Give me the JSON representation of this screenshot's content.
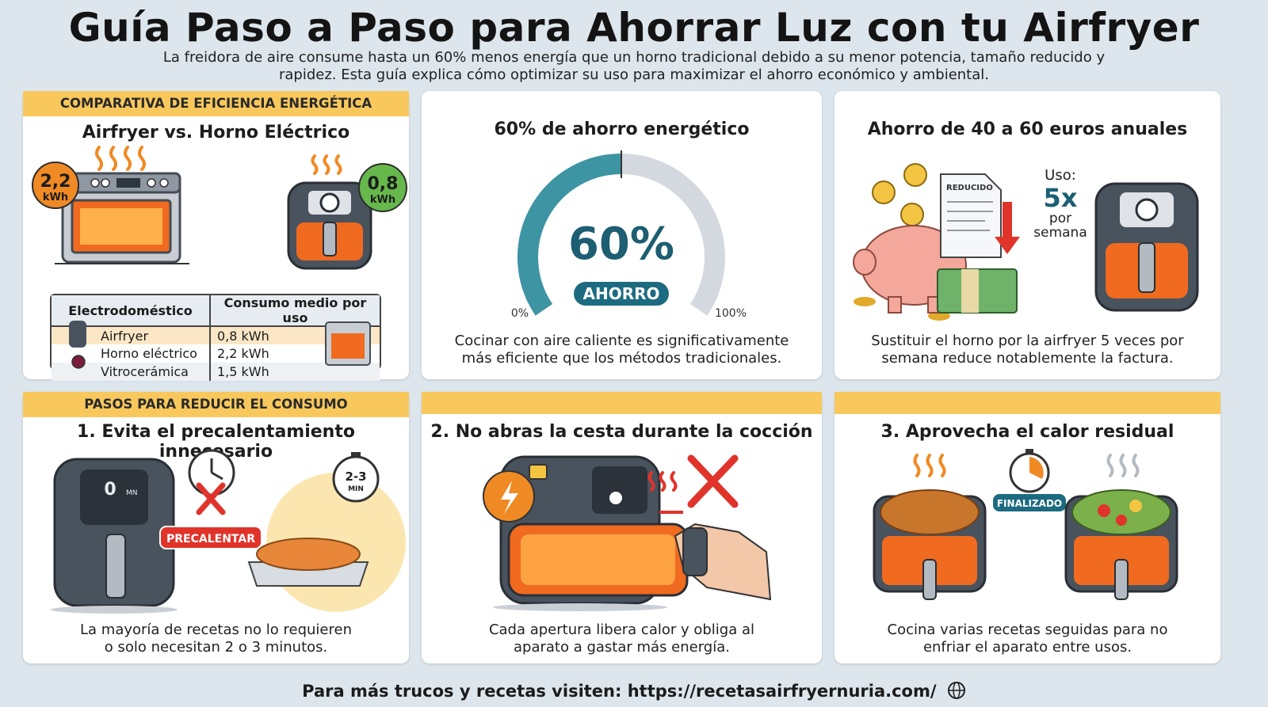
{
  "header": {
    "title": "Guía Paso a Paso para Ahorrar Luz con tu Airfryer",
    "subtitle_line1": "La freidora de aire consume hasta un 60% menos energía que un horno tradicional debido a su menor potencia, tamaño reducido y",
    "subtitle_line2": "rapidez. Esta guía explica cómo optimizar su uso para maximizar el ahorro económico y ambiental."
  },
  "comparison": {
    "band": "COMPARATIVA DE EFICIENCIA ENERGÉTICA",
    "title": "Airfryer vs. Horno Eléctrico",
    "oven_value": "2,2",
    "oven_unit": "kWh",
    "airfryer_value": "0,8",
    "airfryer_unit": "kWh",
    "table": {
      "col1": "Electrodoméstico",
      "col2": "Consumo medio por uso",
      "rows": [
        {
          "name": "Airfryer",
          "value": "0,8 kWh"
        },
        {
          "name": "Horno eléctrico",
          "value": "2,2 kWh"
        },
        {
          "name": "Vitrocerámica",
          "value": "1,5 kWh"
        }
      ]
    }
  },
  "savings": {
    "title": "60% de ahorro energético",
    "gauge_value": "60%",
    "gauge_fraction": 0.6,
    "badge": "AHORRO",
    "min": "0%",
    "max": "100%",
    "desc1": "Cocinar con aire caliente es significativamente",
    "desc2": "más eficiente que los métodos tradicionales."
  },
  "euros": {
    "title": "Ahorro de 40 a 60 euros anuales",
    "doc_label": "REDUCIDO",
    "usage_label": "Uso:",
    "usage_value": "5x",
    "usage_unit1": "por",
    "usage_unit2": "semana",
    "desc1": "Sustituir el horno por la airfryer 5 veces por",
    "desc2": "semana reduce notablemente la factura."
  },
  "steps": {
    "band": "PASOS PARA REDUCIR EL CONSUMO",
    "step1": {
      "title": "1. Evita el precalentamiento innecesario",
      "display": "0",
      "display_unit": "MN",
      "tag": "PRECALENTAR",
      "timer": "2-3",
      "timer_unit": "MIN",
      "desc1": "La mayoría de recetas no lo requieren",
      "desc2": "o solo necesitan 2 o 3 minutos."
    },
    "step2": {
      "title": "2. No abras la cesta durante la cocción",
      "desc1": "Cada apertura libera calor y obliga al",
      "desc2": "aparato a gastar más energía."
    },
    "step3": {
      "title": "3. Aprovecha el calor residual",
      "tag": "FINALIZADO",
      "desc1": "Cocina varias recetas seguidas para no",
      "desc2": "enfriar el aparato entre usos."
    }
  },
  "footer": {
    "text": "Para más trucos y recetas visiten: https://recetasairfryernuria.com/"
  },
  "colors": {
    "band": "#f8c85d",
    "teal": "#1d6b80",
    "green": "#4caf50",
    "orange": "#f08a24",
    "red": "#e0342b",
    "fryer": "#49535e"
  }
}
